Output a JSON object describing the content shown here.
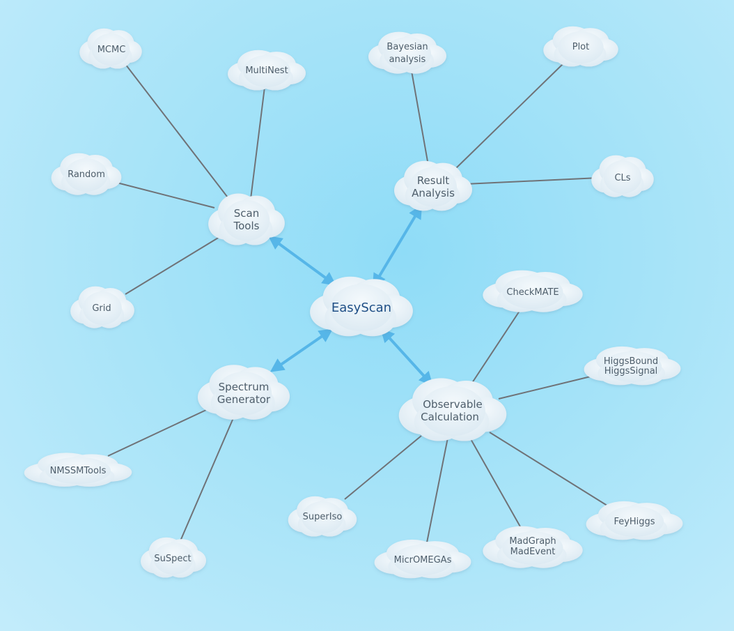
{
  "nodes": {
    "center": {
      "label": "EasyScan"
    },
    "scan_tools": {
      "line1": "Scan",
      "line2": "Tools"
    },
    "result_analysis": {
      "line1": "Result",
      "line2": "Analysis"
    },
    "spectrum_generator": {
      "line1": "Spectrum",
      "line2": "Generator"
    },
    "observable_calculation": {
      "line1": "Observable",
      "line2": "Calculation"
    },
    "mcmc": {
      "label": "MCMC"
    },
    "multinest": {
      "label": "MultiNest"
    },
    "random": {
      "label": "Random"
    },
    "grid": {
      "label": "Grid"
    },
    "bayesian": {
      "line1": "Bayesian",
      "line2": "analysis"
    },
    "plot": {
      "label": "Plot"
    },
    "cls": {
      "label": "CLs"
    },
    "checkmate": {
      "label": "CheckMATE"
    },
    "higgs": {
      "line1": "HiggsBound",
      "line2": "HiggsSignal"
    },
    "nmssmtools": {
      "label": "NMSSMTools"
    },
    "suspect": {
      "label": "SuSpect"
    },
    "superiso": {
      "label": "SuperIso"
    },
    "micromegas": {
      "label": "MicrOMEGAs"
    },
    "madgraph": {
      "line1": "MadGraph",
      "line2": "MadEvent"
    },
    "feyhiggs": {
      "label": "FeyHiggs"
    }
  },
  "colors": {
    "cloud_fill": "#eaf3f9",
    "connector": "#6f7277",
    "arrow": "#56b6e8",
    "center_text": "#1f4f86",
    "text": "#4d5d6a"
  }
}
